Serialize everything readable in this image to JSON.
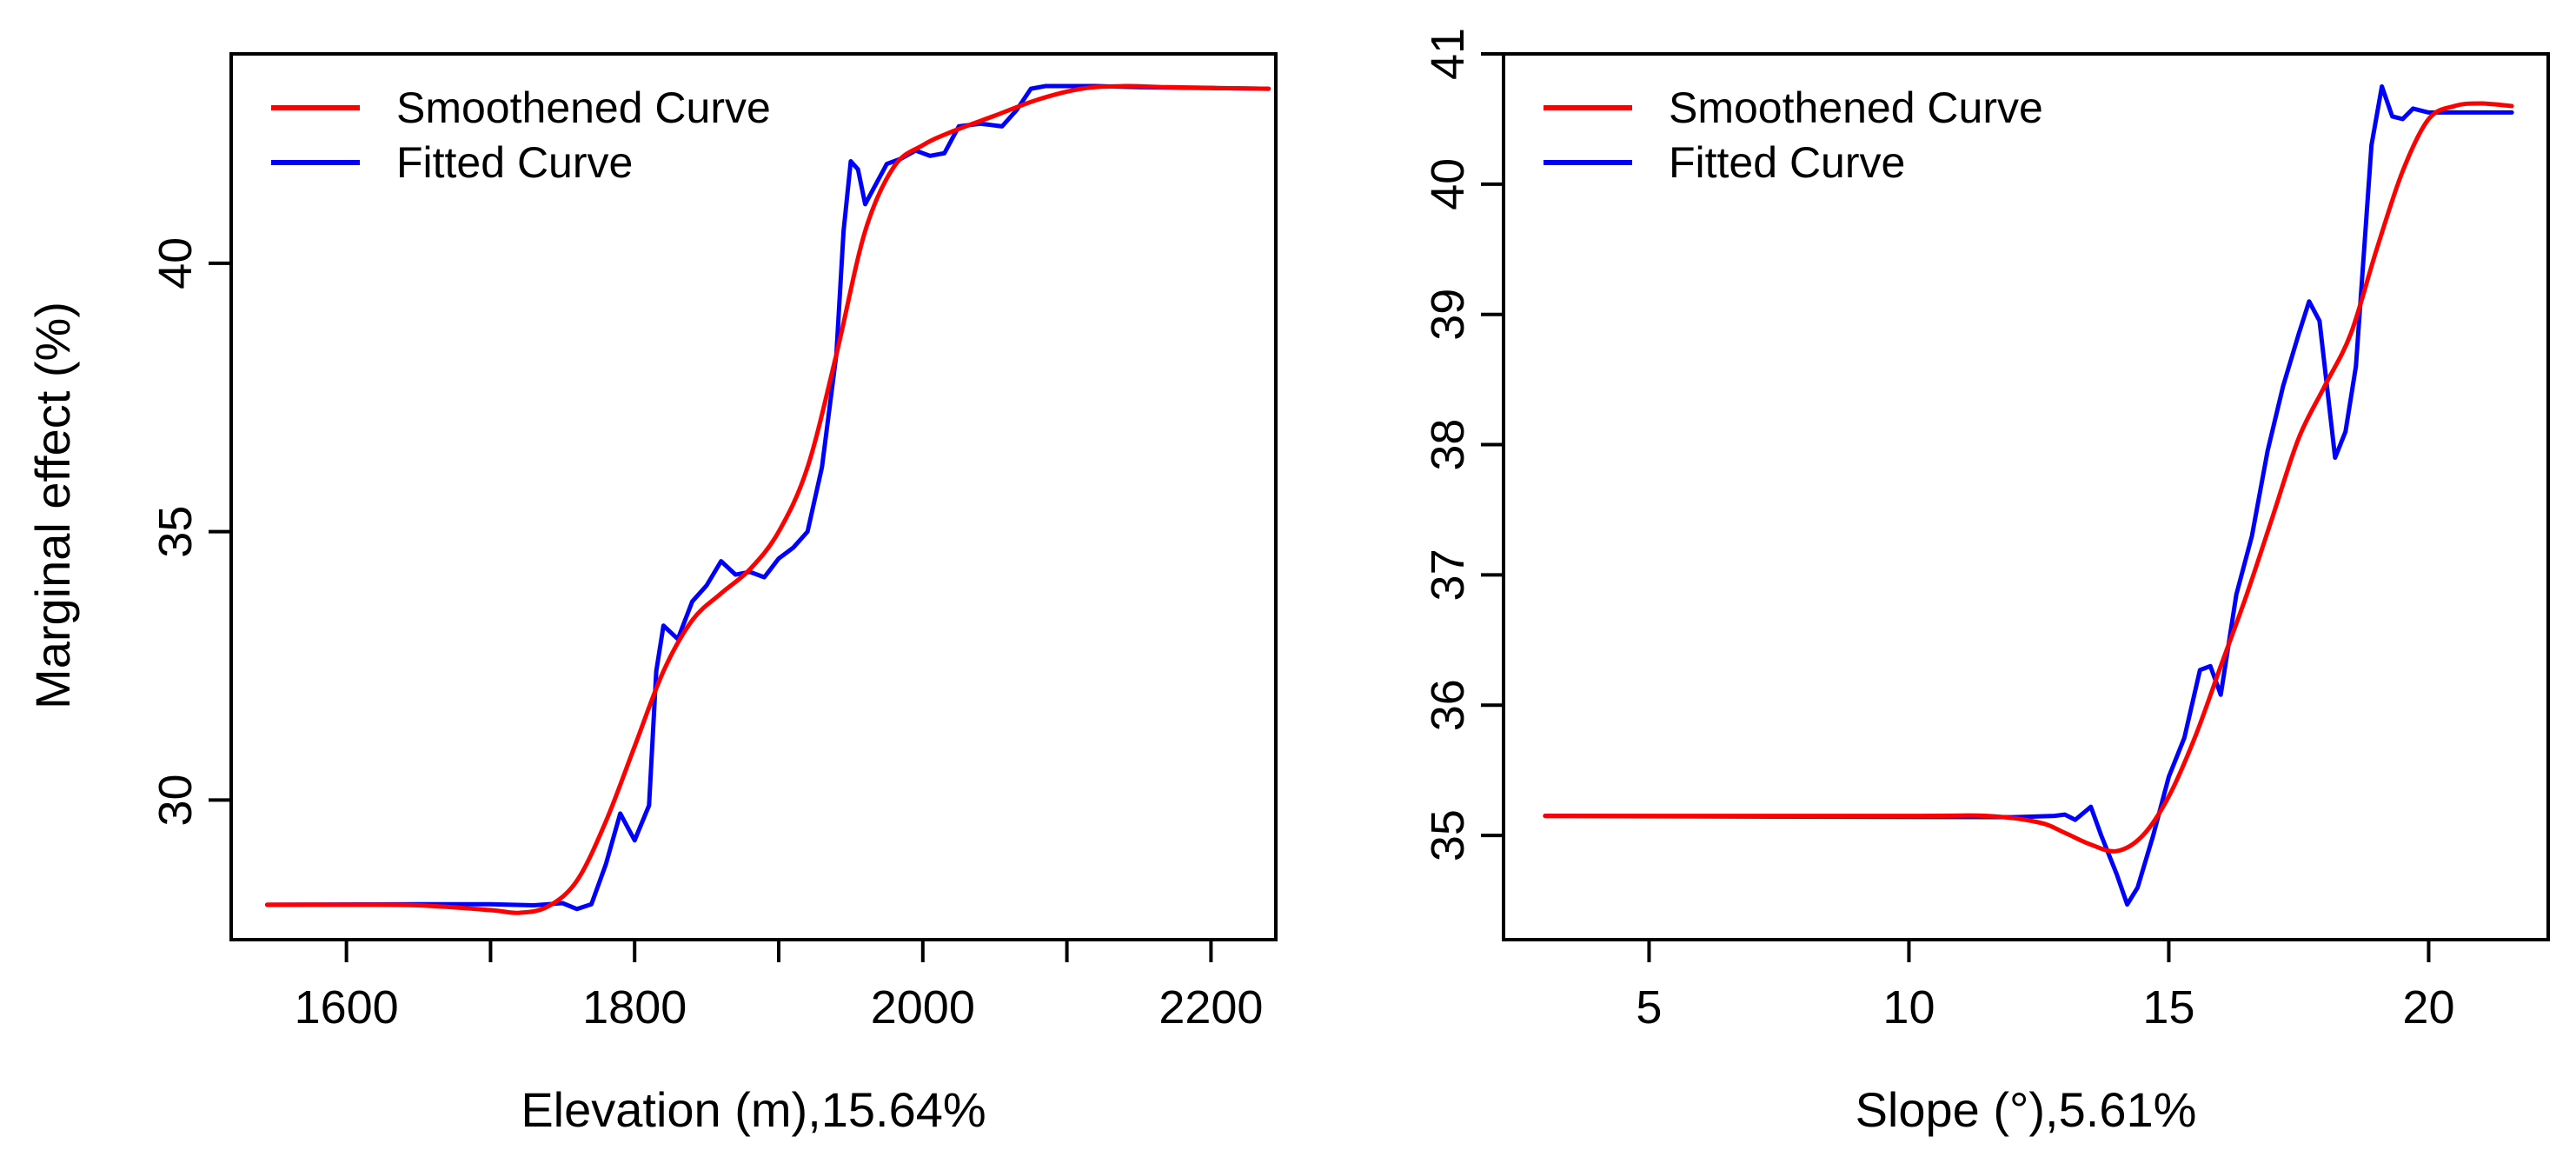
{
  "chart_data": [
    {
      "type": "line",
      "title": "",
      "xlabel": "Elevation (m),15.64%",
      "ylabel": "Marginal effect (%)",
      "xlim": [
        1520,
        2245
      ],
      "ylim": [
        27.4,
        43.9
      ],
      "xticks": [
        1600,
        1700,
        1800,
        1900,
        2000,
        2100,
        2200
      ],
      "xtick_labels": [
        "1600",
        "",
        "1800",
        "",
        "2000",
        "",
        "2200"
      ],
      "yticks": [
        30,
        35,
        40
      ],
      "ytick_labels": [
        "30",
        "35",
        "40"
      ],
      "legend_position": "top-left",
      "series": [
        {
          "name": "Smoothened Curve",
          "color": "#ff0000",
          "x": [
            1545,
            1600,
            1650,
            1700,
            1720,
            1740,
            1760,
            1780,
            1800,
            1820,
            1840,
            1860,
            1880,
            1900,
            1920,
            1940,
            1960,
            1980,
            2000,
            2020,
            2050,
            2080,
            2110,
            2140,
            2170,
            2240
          ],
          "y": [
            28.05,
            28.05,
            28.04,
            27.95,
            27.9,
            28.02,
            28.5,
            29.6,
            31.0,
            32.4,
            33.35,
            33.85,
            34.3,
            35.0,
            36.2,
            38.3,
            40.6,
            41.8,
            42.2,
            42.45,
            42.75,
            43.05,
            43.25,
            43.3,
            43.28,
            43.25
          ]
        },
        {
          "name": "Fitted Curve",
          "color": "#0000ff",
          "x": [
            1545,
            1650,
            1700,
            1730,
            1750,
            1760,
            1770,
            1780,
            1790,
            1800,
            1810,
            1815,
            1820,
            1830,
            1840,
            1850,
            1860,
            1870,
            1880,
            1890,
            1900,
            1910,
            1920,
            1930,
            1940,
            1945,
            1950,
            1955,
            1960,
            1965,
            1975,
            1985,
            1995,
            2005,
            2015,
            2025,
            2040,
            2055,
            2065,
            2075,
            2085,
            2100,
            2120,
            2150,
            2240
          ],
          "y": [
            28.05,
            28.06,
            28.06,
            28.04,
            28.08,
            27.97,
            28.06,
            28.8,
            29.75,
            29.25,
            29.9,
            32.4,
            33.25,
            33.0,
            33.7,
            34.0,
            34.45,
            34.2,
            34.25,
            34.15,
            34.5,
            34.7,
            35.0,
            36.2,
            38.3,
            40.6,
            41.9,
            41.75,
            41.1,
            41.35,
            41.85,
            41.95,
            42.1,
            42.0,
            42.05,
            42.55,
            42.6,
            42.55,
            42.85,
            43.25,
            43.3,
            43.3,
            43.3,
            43.28,
            43.25
          ]
        }
      ]
    },
    {
      "type": "line",
      "title": "",
      "xlabel": "Slope (°),5.61%",
      "ylabel": "",
      "xlim": [
        2.2,
        22.3
      ],
      "ylim": [
        34.2,
        41.0
      ],
      "xticks": [
        5,
        10,
        15,
        20
      ],
      "xtick_labels": [
        "5",
        "10",
        "15",
        "20"
      ],
      "yticks": [
        35,
        36,
        37,
        38,
        39,
        40,
        41
      ],
      "ytick_labels": [
        "35",
        "36",
        "37",
        "38",
        "39",
        "40",
        "41"
      ],
      "legend_position": "top-left",
      "series": [
        {
          "name": "Smoothened Curve",
          "color": "#ff0000",
          "x": [
            3.0,
            10.0,
            11.5,
            12.5,
            13.0,
            13.5,
            14.0,
            14.5,
            15.0,
            15.5,
            16.0,
            16.5,
            17.0,
            17.5,
            18.0,
            18.5,
            19.0,
            19.5,
            20.0,
            20.5,
            21.0,
            21.6
          ],
          "y": [
            35.15,
            35.15,
            35.15,
            35.1,
            35.02,
            34.93,
            34.88,
            35.0,
            35.3,
            35.75,
            36.3,
            36.85,
            37.45,
            38.05,
            38.45,
            38.85,
            39.5,
            40.1,
            40.5,
            40.6,
            40.62,
            40.6
          ],
          "note": "plotted as smooth curve"
        },
        {
          "name": "Fitted Curve",
          "color": "#0000ff",
          "x": [
            3.0,
            12.0,
            12.8,
            13.0,
            13.2,
            13.5,
            13.7,
            14.0,
            14.2,
            14.4,
            14.7,
            15.0,
            15.3,
            15.6,
            15.8,
            16.0,
            16.3,
            16.6,
            16.9,
            17.2,
            17.5,
            17.7,
            17.9,
            18.2,
            18.4,
            18.6,
            18.9,
            19.1,
            19.3,
            19.5,
            19.7,
            20.0,
            20.5,
            21.0,
            21.6
          ],
          "y": [
            35.15,
            35.14,
            35.15,
            35.16,
            35.12,
            35.22,
            35.0,
            34.7,
            34.47,
            34.6,
            35.0,
            35.45,
            35.75,
            36.27,
            36.3,
            36.08,
            36.85,
            37.3,
            37.95,
            38.45,
            38.85,
            39.1,
            38.95,
            37.9,
            38.1,
            38.6,
            40.3,
            40.75,
            40.52,
            40.5,
            40.58,
            40.55,
            40.55,
            40.55,
            40.55
          ]
        }
      ]
    }
  ]
}
